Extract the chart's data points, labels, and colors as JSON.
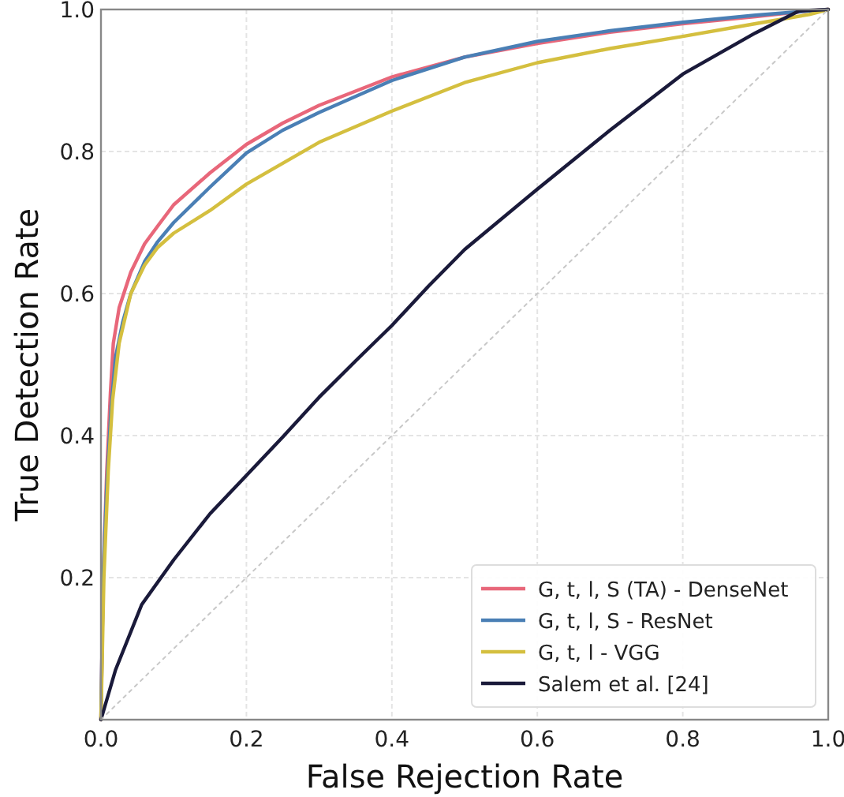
{
  "chart_data": {
    "type": "line",
    "xlabel": "False Rejection Rate",
    "ylabel": "True Detection Rate",
    "xlim": [
      0,
      1
    ],
    "ylim": [
      0,
      1
    ],
    "xticks": [
      {
        "value": 0,
        "label": "0.0"
      },
      0.2,
      0.4,
      0.6,
      0.8,
      {
        "value": 1,
        "label": "1.0"
      }
    ],
    "yticks": [
      0.2,
      0.4,
      0.6,
      0.8,
      {
        "value": 1,
        "label": "1.0"
      }
    ],
    "grid": true,
    "legend": "bottom right",
    "line_style": "solid",
    "series": [
      {
        "name": "G, t, l, S (TA) - DenseNet",
        "color": "#e8677a",
        "x": [
          0,
          0.003,
          0.008,
          0.013,
          0.017,
          0.025,
          0.041,
          0.06,
          0.078,
          0.1,
          0.15,
          0.2,
          0.25,
          0.3,
          0.4,
          0.5,
          0.6,
          0.7,
          0.8,
          0.9,
          0.974,
          1
        ],
        "values": [
          0,
          0.2,
          0.35,
          0.46,
          0.53,
          0.58,
          0.63,
          0.67,
          0.695,
          0.725,
          0.77,
          0.81,
          0.84,
          0.865,
          0.905,
          0.933,
          0.952,
          0.968,
          0.98,
          0.99,
          0.998,
          1
        ]
      },
      {
        "name": "G, t, l, S - ResNet",
        "color": "#4a7fb5",
        "x": [
          0,
          0.003,
          0.008,
          0.014,
          0.02,
          0.03,
          0.041,
          0.06,
          0.078,
          0.1,
          0.15,
          0.2,
          0.25,
          0.3,
          0.4,
          0.5,
          0.6,
          0.7,
          0.8,
          0.9,
          1
        ],
        "values": [
          0,
          0.2,
          0.33,
          0.44,
          0.51,
          0.56,
          0.6,
          0.645,
          0.673,
          0.7,
          0.75,
          0.798,
          0.83,
          0.855,
          0.9,
          0.933,
          0.955,
          0.97,
          0.982,
          0.992,
          1
        ]
      },
      {
        "name": "G, t, l - VGG",
        "color": "#d4bf3f",
        "x": [
          0,
          0.004,
          0.01,
          0.016,
          0.025,
          0.041,
          0.06,
          0.078,
          0.1,
          0.15,
          0.2,
          0.3,
          0.4,
          0.5,
          0.6,
          0.7,
          0.8,
          0.9,
          0.974,
          1
        ],
        "values": [
          0,
          0.2,
          0.35,
          0.45,
          0.53,
          0.6,
          0.64,
          0.665,
          0.685,
          0.717,
          0.754,
          0.813,
          0.857,
          0.897,
          0.925,
          0.945,
          0.962,
          0.98,
          0.993,
          1
        ]
      },
      {
        "name": "Salem et al. [24]",
        "color": "#1a1a3a",
        "x": [
          0,
          0.02,
          0.056,
          0.1,
          0.15,
          0.2,
          0.25,
          0.3,
          0.35,
          0.4,
          0.45,
          0.5,
          0.6,
          0.7,
          0.8,
          0.9,
          0.96,
          1
        ],
        "values": [
          0,
          0.07,
          0.162,
          0.225,
          0.29,
          0.344,
          0.398,
          0.454,
          0.505,
          0.555,
          0.61,
          0.662,
          0.747,
          0.83,
          0.909,
          0.967,
          0.998,
          1
        ]
      },
      {
        "color": "#c8c8c8",
        "line_style": "dotted",
        "x": [
          0,
          1
        ],
        "values": [
          0,
          1
        ]
      }
    ]
  }
}
